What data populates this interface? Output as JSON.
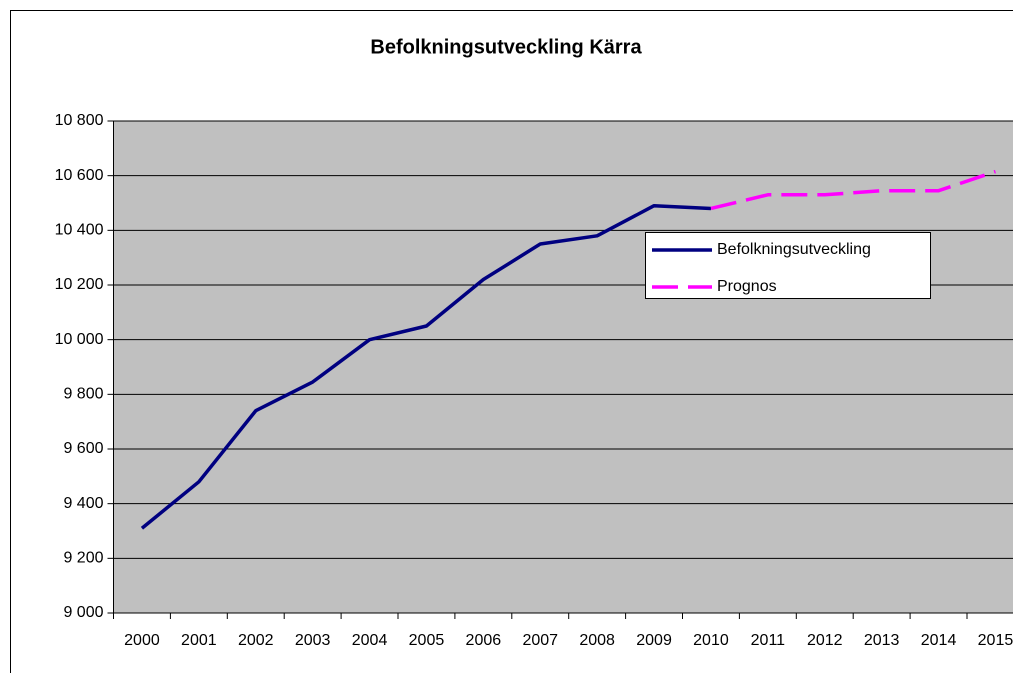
{
  "chart_data": {
    "type": "line",
    "title": "Befolkningsutveckling Kärra",
    "categories": [
      "2000",
      "2001",
      "2002",
      "2003",
      "2004",
      "2005",
      "2006",
      "2007",
      "2008",
      "2009",
      "2010",
      "2011",
      "2012",
      "2013",
      "2014",
      "2015"
    ],
    "series": [
      {
        "name": "Befolkningsutveckling",
        "color": "#000080",
        "dash": false,
        "values": [
          9310,
          9480,
          9740,
          9845,
          10000,
          10050,
          10220,
          10350,
          10380,
          10490,
          10480,
          null,
          null,
          null,
          null,
          null
        ]
      },
      {
        "name": "Prognos",
        "color": "#ff00ff",
        "dash": true,
        "values": [
          null,
          null,
          null,
          null,
          null,
          null,
          null,
          null,
          null,
          null,
          10480,
          10530,
          10530,
          10545,
          10545,
          10615
        ]
      }
    ],
    "ylim": [
      9000,
      10800
    ],
    "yticks": [
      {
        "value": 9000,
        "label": "9 000"
      },
      {
        "value": 9200,
        "label": "9 200"
      },
      {
        "value": 9400,
        "label": "9 400"
      },
      {
        "value": 9600,
        "label": "9 600"
      },
      {
        "value": 9800,
        "label": "9 800"
      },
      {
        "value": 10000,
        "label": "10 000"
      },
      {
        "value": 10200,
        "label": "10 200"
      },
      {
        "value": 10400,
        "label": "10 400"
      },
      {
        "value": 10600,
        "label": "10 600"
      },
      {
        "value": 10800,
        "label": "10 800"
      }
    ],
    "grid": true,
    "plot_background": "#c0c0c0"
  }
}
